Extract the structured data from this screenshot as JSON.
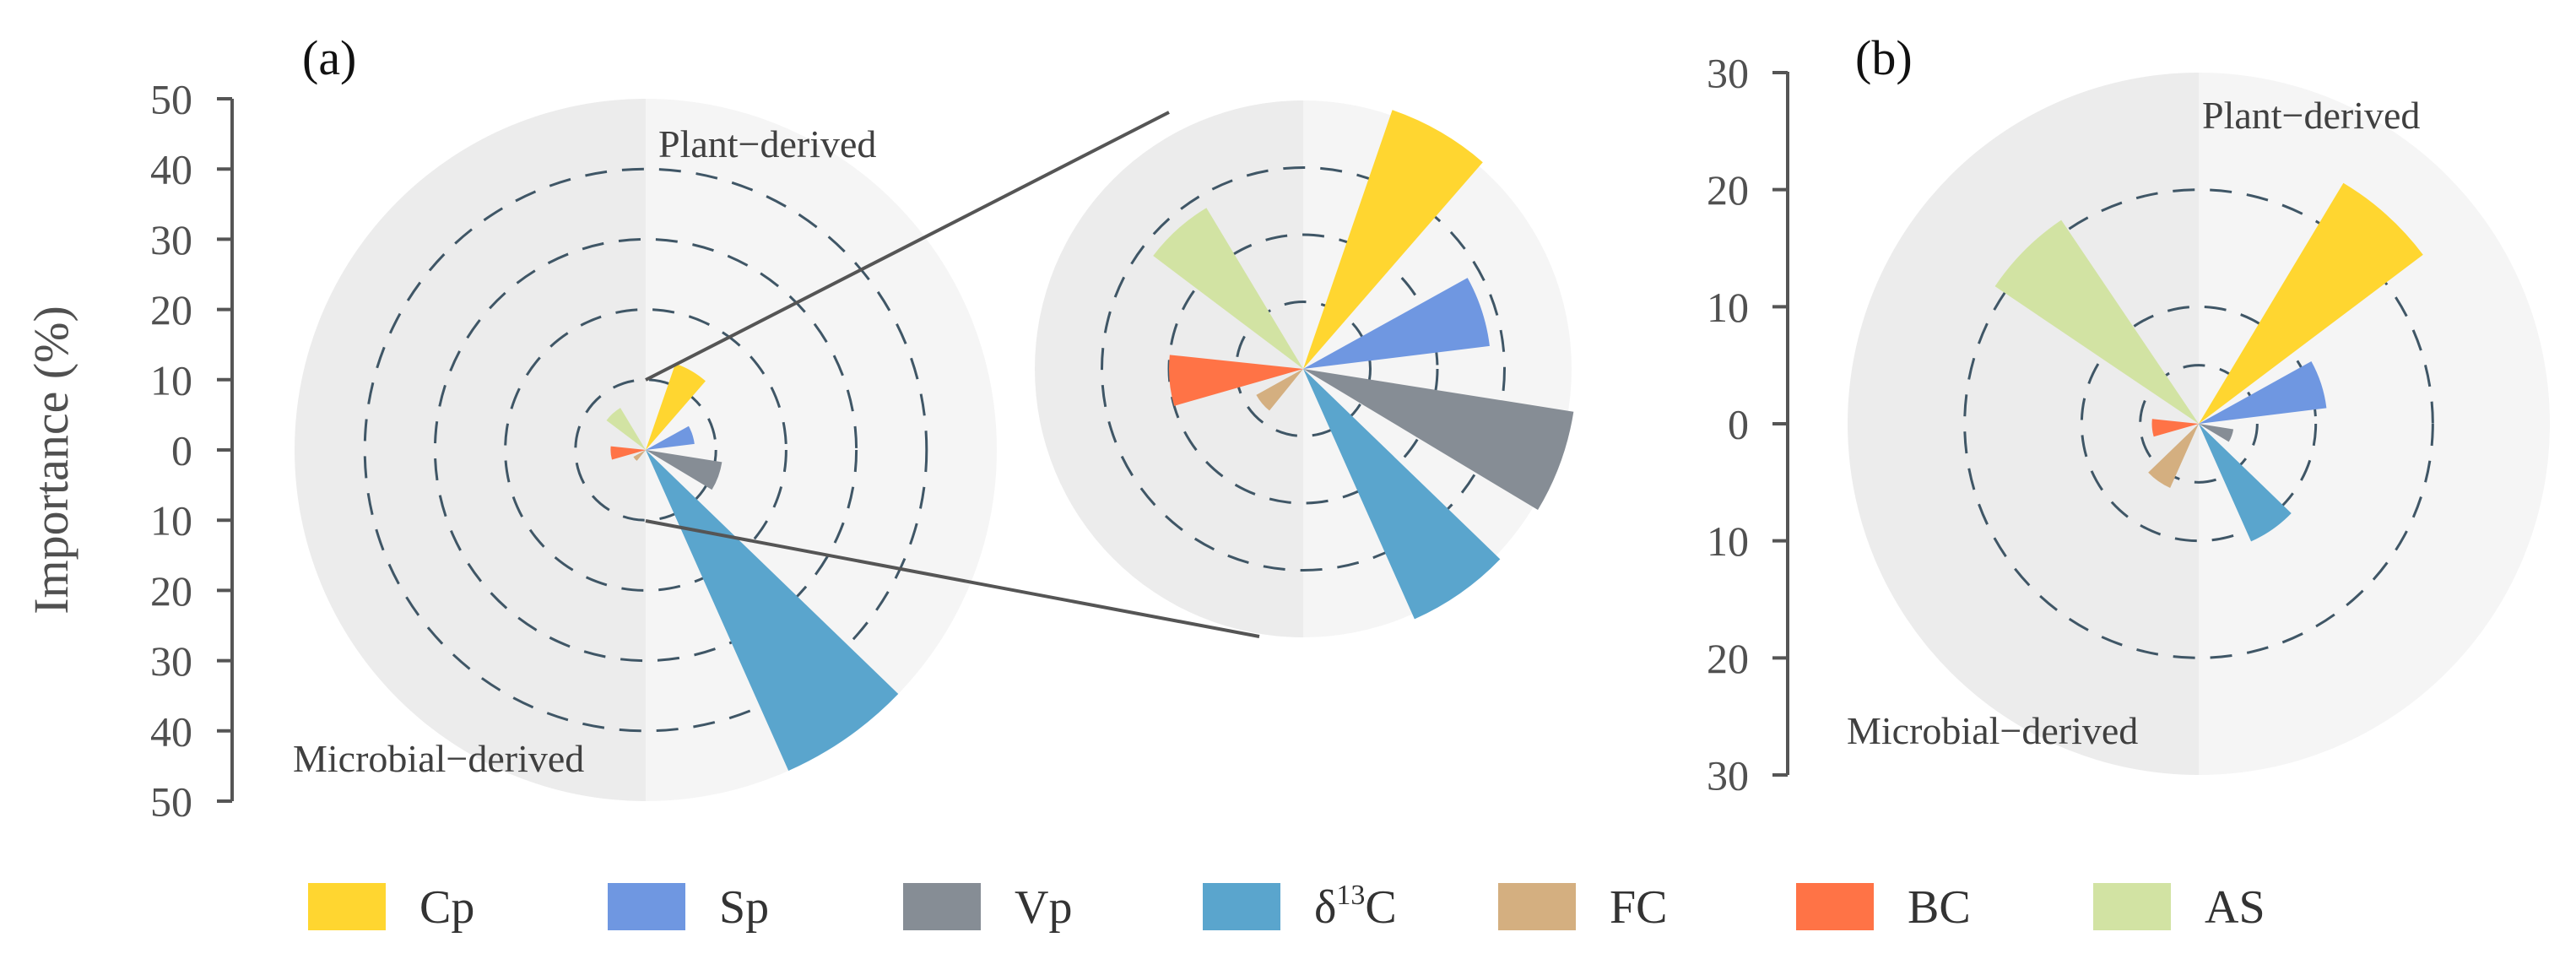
{
  "chart_data": [
    {
      "panel": "(a)",
      "type": "polar-bar",
      "ylabel": "Importance (%)",
      "y_ticks_top": [
        50,
        40,
        30,
        20,
        10,
        0
      ],
      "y_ticks_bottom": [
        10,
        20,
        30,
        40,
        50
      ],
      "rmax": 50,
      "rings": [
        10,
        20,
        30,
        40
      ],
      "left_half_label": "Microbial−derived",
      "right_half_label": "Plant−derived",
      "series": [
        {
          "name": "Cp",
          "angle_deg": 30,
          "value": 13
        },
        {
          "name": "Sp",
          "angle_deg": 72,
          "value": 7
        },
        {
          "name": "Vp",
          "angle_deg": 110,
          "value": 11
        },
        {
          "name": "δ13C",
          "angle_deg": 145,
          "value": 50
        },
        {
          "name": "FC",
          "angle_deg": 230,
          "value": 2
        },
        {
          "name": "BC",
          "angle_deg": 265,
          "value": 5
        },
        {
          "name": "AS",
          "angle_deg": 318,
          "value": 7
        }
      ],
      "inset": {
        "rmax": 10,
        "rings": [
          2.5,
          5,
          7.5
        ]
      }
    },
    {
      "panel": "(b)",
      "type": "polar-bar",
      "ylabel": "",
      "y_ticks_top": [
        30,
        20,
        10,
        0
      ],
      "y_ticks_bottom": [
        10,
        20,
        30
      ],
      "rmax": 30,
      "rings": [
        5,
        10,
        20
      ],
      "left_half_label": "Microbial−derived",
      "right_half_label": "Plant−derived",
      "series": [
        {
          "name": "Cp",
          "angle_deg": 42,
          "value": 24
        },
        {
          "name": "Sp",
          "angle_deg": 72,
          "value": 11
        },
        {
          "name": "Vp",
          "angle_deg": 110,
          "value": 3
        },
        {
          "name": "δ13C",
          "angle_deg": 145,
          "value": 11
        },
        {
          "name": "FC",
          "angle_deg": 215,
          "value": 6
        },
        {
          "name": "BC",
          "angle_deg": 265,
          "value": 4
        },
        {
          "name": "AS",
          "angle_deg": 315,
          "value": 21
        }
      ]
    }
  ],
  "legend": [
    {
      "name": "Cp",
      "color": "#FFD630"
    },
    {
      "name": "Sp",
      "color": "#6F97E1"
    },
    {
      "name": "Vp",
      "color": "#868D95"
    },
    {
      "name": "δ",
      "sup": "13",
      "after": "C",
      "color": "#5AA5CD"
    },
    {
      "name": "FC",
      "color": "#D4AF80"
    },
    {
      "name": "BC",
      "color": "#FF7346"
    },
    {
      "name": "AS",
      "color": "#D2E3A3"
    }
  ],
  "colors": {
    "Cp": "#FFD630",
    "Sp": "#6F97E1",
    "Vp": "#868D95",
    "δ13C": "#5AA5CD",
    "FC": "#D4AF80",
    "BC": "#FF7346",
    "AS": "#D2E3A3",
    "left_half": "#ececec",
    "right_half": "#f5f5f5",
    "ring": "#3f5666"
  }
}
